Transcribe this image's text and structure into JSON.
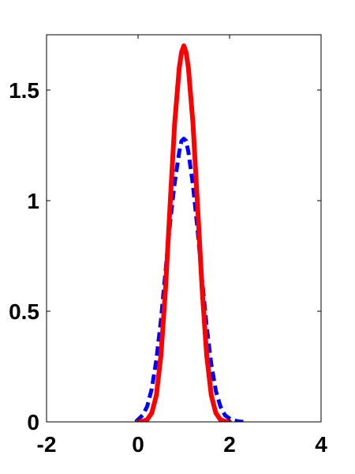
{
  "chart_data": {
    "type": "line",
    "title": "",
    "xlabel": "",
    "ylabel": "",
    "xlim": [
      -2,
      4
    ],
    "ylim": [
      0,
      1.75
    ],
    "grid": false,
    "x_ticks": [
      -2,
      0,
      2,
      4
    ],
    "x_tick_labels": [
      "-2",
      "0",
      "2",
      "4"
    ],
    "y_ticks": [
      0,
      0.5,
      1,
      1.5
    ],
    "y_tick_labels": [
      "0",
      "0.5",
      "1",
      "1.5"
    ],
    "series": [
      {
        "color": "#0000ff",
        "style": "dashed",
        "x": [
          -0.05,
          0.0,
          0.1,
          0.2,
          0.3,
          0.4,
          0.5,
          0.6,
          0.7,
          0.8,
          0.9,
          0.95,
          1.0,
          1.05,
          1.1,
          1.2,
          1.3,
          1.4,
          1.5,
          1.6,
          1.7,
          1.8,
          1.9,
          2.0,
          2.1,
          2.2,
          2.3
        ],
        "y": [
          0.0,
          0.01,
          0.03,
          0.07,
          0.15,
          0.28,
          0.46,
          0.68,
          0.9,
          1.08,
          1.22,
          1.27,
          1.28,
          1.27,
          1.22,
          1.07,
          0.87,
          0.64,
          0.43,
          0.26,
          0.14,
          0.07,
          0.03,
          0.015,
          0.006,
          0.002,
          0.0
        ]
      },
      {
        "color": "#ff0000",
        "style": "solid",
        "x": [
          0.0,
          0.1,
          0.2,
          0.3,
          0.4,
          0.5,
          0.6,
          0.7,
          0.8,
          0.9,
          0.95,
          1.0,
          1.05,
          1.1,
          1.2,
          1.3,
          1.4,
          1.5,
          1.6,
          1.7,
          1.8,
          1.9,
          2.0
        ],
        "y": [
          0.0,
          0.002,
          0.01,
          0.04,
          0.12,
          0.3,
          0.6,
          0.98,
          1.35,
          1.6,
          1.67,
          1.7,
          1.67,
          1.6,
          1.35,
          0.98,
          0.6,
          0.3,
          0.12,
          0.04,
          0.01,
          0.002,
          0.0
        ]
      }
    ]
  }
}
